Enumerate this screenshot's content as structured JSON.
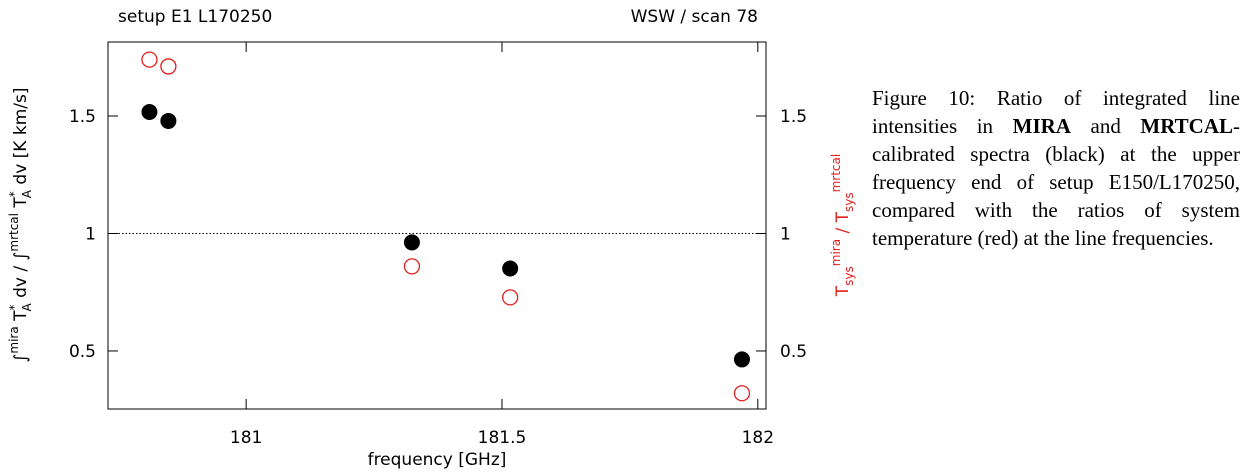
{
  "chart_data": {
    "type": "scatter",
    "top_left_label": "setup E1 L170250",
    "top_right_label": "WSW / scan 78",
    "x_label": "frequency [GHz]",
    "y_label_parts": [
      "∫",
      "mira",
      " T",
      "*",
      "A",
      " dv / ∫",
      "mrtcal",
      " T",
      "*",
      "A",
      " dv [K km/s]"
    ],
    "y2_label_parts": [
      "T",
      "sys",
      "mira",
      " / T",
      "sys",
      "mrtcal"
    ],
    "y2_label_color": "#e0201b",
    "x": [
      180.811,
      180.848,
      181.324,
      181.516,
      181.969
    ],
    "series": [
      {
        "color": "#000000",
        "marker": "filled",
        "values": [
          1.517,
          1.479,
          0.962,
          0.851,
          0.464
        ]
      },
      {
        "color": "#e0201b",
        "marker": "open",
        "values": [
          1.74,
          1.711,
          0.86,
          0.728,
          0.32
        ]
      }
    ],
    "xlim": [
      180.73,
      182.016
    ],
    "ylim": [
      0.253,
      1.815
    ],
    "xticks": [
      181,
      181.5,
      182
    ],
    "yticks": [
      0.5,
      1,
      1.5
    ],
    "y2lim": [
      0.253,
      1.815
    ],
    "y2ticks": [
      0.5,
      1,
      1.5
    ],
    "reference_line": 1
  },
  "caption": [
    "Figure 10: Ratio of integrated line intensities in ",
    "MIRA",
    " and ",
    "MRTCAL",
    "-calibrated spectra (black) at the upper frequency end of setup E150/L170250, compared with the ratios of system temperature (red) at the line frequencies."
  ]
}
